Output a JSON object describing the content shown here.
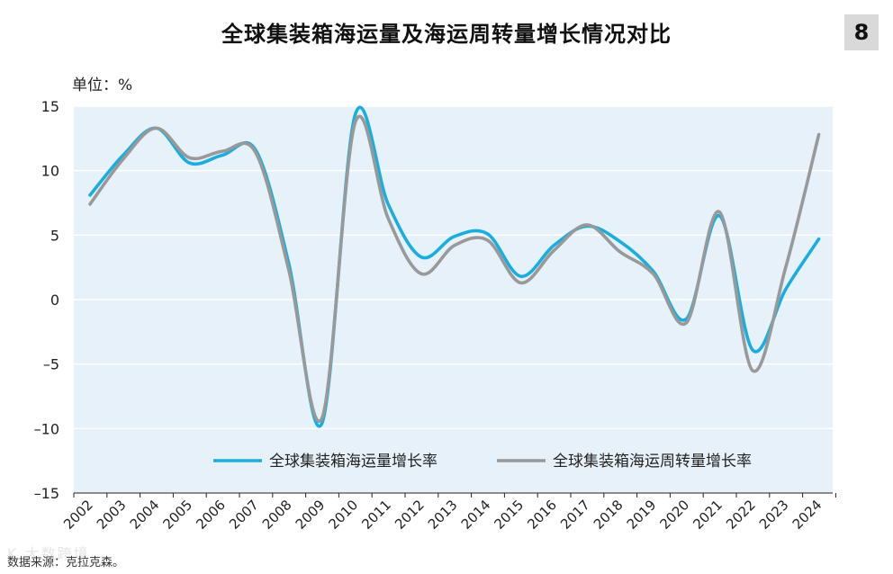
{
  "header": {
    "title": "全球集装箱海运量及海运周转量增长情况对比",
    "figure_number": "8",
    "unit_label": "单位：%"
  },
  "footer": {
    "source": "数据来源：克拉克森。",
    "watermark": "K 大数跨境"
  },
  "chart_data": {
    "type": "line",
    "title": "全球集装箱海运量及海运周转量增长情况对比",
    "xlabel": "",
    "ylabel": "单位：%",
    "ylim": [
      -15,
      15
    ],
    "yticks": [
      15,
      10,
      5,
      0,
      -5,
      -10,
      -15
    ],
    "ytick_labels": [
      "15",
      "10",
      "5",
      "0",
      "–5",
      "–10",
      "–15"
    ],
    "categories": [
      "2002",
      "2003",
      "2004",
      "2005",
      "2006",
      "2007",
      "2008",
      "2009",
      "2010",
      "2011",
      "2012",
      "2013",
      "2014",
      "2015",
      "2016",
      "2017",
      "2018",
      "2019",
      "2020",
      "2021",
      "2022",
      "2023",
      "2024"
    ],
    "grid": "horizontal",
    "legend_position": "bottom-right",
    "series": [
      {
        "name": "全球集装箱海运量增长率",
        "color": "#1aaee0",
        "values": [
          8.1,
          11.2,
          13.3,
          10.6,
          11.2,
          11.6,
          2.8,
          -9.6,
          14.3,
          7.4,
          3.3,
          4.9,
          5.1,
          1.8,
          4.2,
          5.7,
          4.5,
          2.2,
          -1.5,
          6.5,
          -3.9,
          0.8,
          4.7
        ]
      },
      {
        "name": "全球集装箱海运周转量增长率",
        "color": "#999999",
        "values": [
          7.4,
          10.9,
          13.3,
          11.0,
          11.5,
          11.4,
          2.3,
          -9.2,
          13.7,
          6.3,
          2.0,
          4.2,
          4.6,
          1.3,
          3.8,
          5.8,
          3.7,
          2.0,
          -1.8,
          6.8,
          -5.5,
          2.5,
          12.8
        ]
      }
    ]
  }
}
